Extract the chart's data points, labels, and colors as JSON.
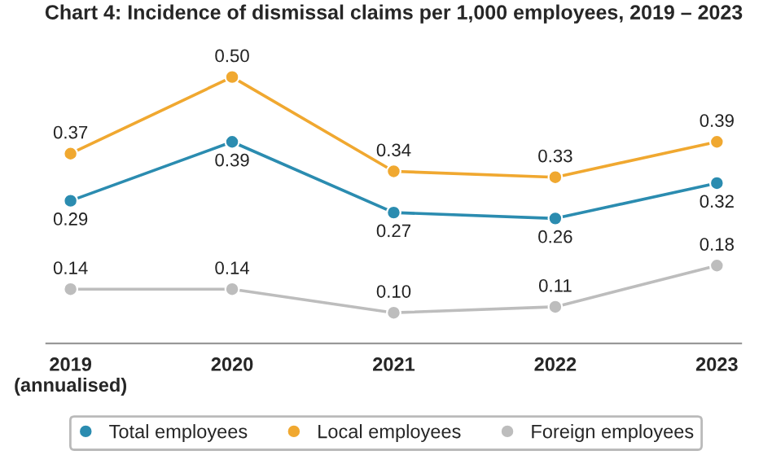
{
  "chart_data": {
    "type": "line",
    "title": "Chart 4: Incidence of dismissal claims per 1,000 employees, 2019 – 2023",
    "categories": [
      "2019\n(annualised)",
      "2020",
      "2021",
      "2022",
      "2023"
    ],
    "series": [
      {
        "name": "Total employees",
        "color": "#2b8cb0",
        "values": [
          0.29,
          0.39,
          0.27,
          0.26,
          0.32
        ],
        "value_labels": [
          "0.29",
          "0.39",
          "0.27",
          "0.26",
          "0.32"
        ]
      },
      {
        "name": "Local employees",
        "color": "#f0a830",
        "values": [
          0.37,
          0.5,
          0.34,
          0.33,
          0.39
        ],
        "value_labels": [
          "0.37",
          "0.50",
          "0.34",
          "0.33",
          "0.39"
        ]
      },
      {
        "name": "Foreign employees",
        "color": "#bdbdbd",
        "values": [
          0.14,
          0.14,
          0.1,
          0.11,
          0.18
        ],
        "value_labels": [
          "0.14",
          "0.14",
          "0.10",
          "0.11",
          "0.18"
        ]
      }
    ],
    "marker": "circle",
    "line_style": "solid",
    "legend": "bottom",
    "grid": false
  }
}
